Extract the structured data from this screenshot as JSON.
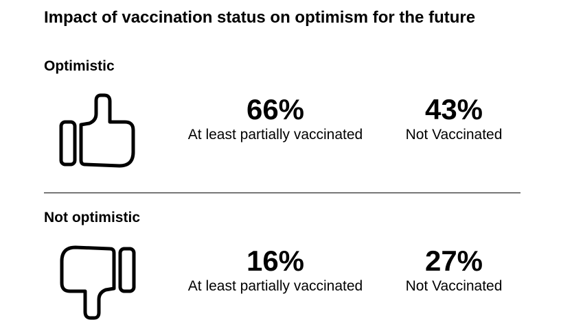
{
  "chart_data": {
    "type": "table",
    "title": "Impact of vaccination status on optimism for the future",
    "categories": [
      "At least partially vaccinated",
      "Not Vaccinated"
    ],
    "sections": [
      {
        "label": "Optimistic",
        "icon": "thumbs-up-icon",
        "values": [
          {
            "pct": "66%",
            "label": "At least partially vaccinated"
          },
          {
            "pct": "43%",
            "label": "Not Vaccinated"
          }
        ]
      },
      {
        "label": "Not optimistic",
        "icon": "thumbs-down-icon",
        "values": [
          {
            "pct": "16%",
            "label": "At least partially vaccinated"
          },
          {
            "pct": "27%",
            "label": "Not Vaccinated"
          }
        ]
      }
    ]
  }
}
